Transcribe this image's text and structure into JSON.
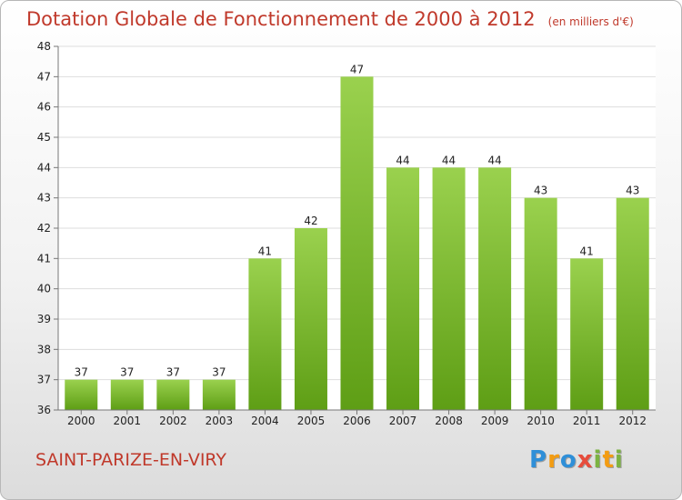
{
  "title": "Dotation Globale de Fonctionnement de 2000 à 2012",
  "unit_note": "(en milliers d'€)",
  "commune": "SAINT-PARIZE-EN-VIRY",
  "logo": {
    "text": "Proxiti",
    "letters": [
      {
        "ch": "P",
        "color": "#2f8fd8"
      },
      {
        "ch": "r",
        "color": "#f39c12"
      },
      {
        "ch": "o",
        "color": "#2f8fd8"
      },
      {
        "ch": "x",
        "color": "#e74c3c"
      },
      {
        "ch": "i",
        "color": "#7cb342"
      },
      {
        "ch": "t",
        "color": "#f39c12"
      },
      {
        "ch": "i",
        "color": "#7cb342"
      }
    ]
  },
  "colors": {
    "title": "#c0392b",
    "bar_light": "#9ad14e",
    "bar_dark": "#5e9e15",
    "axis": "#777777",
    "grid": "#dddddd",
    "text": "#222222"
  },
  "chart_data": {
    "type": "bar",
    "categories": [
      "2000",
      "2001",
      "2002",
      "2003",
      "2004",
      "2005",
      "2006",
      "2007",
      "2008",
      "2009",
      "2010",
      "2011",
      "2012"
    ],
    "values": [
      37,
      37,
      37,
      37,
      41,
      42,
      47,
      44,
      44,
      44,
      43,
      41,
      43
    ],
    "data_labels": [
      "37",
      "37",
      "37",
      "37",
      "41",
      "42",
      "47",
      "44",
      "44",
      "44",
      "43",
      "41",
      "43"
    ],
    "title": "Dotation Globale de Fonctionnement de 2000 à 2012",
    "xlabel": "",
    "ylabel": "",
    "ylim": [
      36,
      48
    ],
    "yticks": [
      36,
      37,
      38,
      39,
      40,
      41,
      42,
      43,
      44,
      45,
      46,
      47,
      48
    ],
    "grid": true,
    "legend": "none"
  }
}
